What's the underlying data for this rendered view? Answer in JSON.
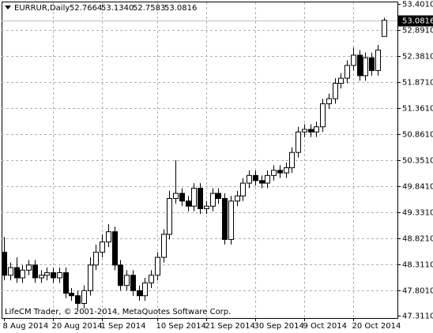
{
  "chart_data": {
    "type": "candlestick",
    "title": "EURRUR,Daily",
    "footer": "LifeCM Trader, © 2001-2014, MetaQuotes Software Corp.",
    "categories": [
      "8 Aug 2014",
      null,
      null,
      null,
      null,
      null,
      null,
      null,
      "20 Aug 2014",
      null,
      null,
      null,
      null,
      null,
      null,
      null,
      "1 Sep 2014",
      null,
      null,
      null,
      null,
      null,
      null,
      null,
      null,
      "10 Sep 2014",
      null,
      null,
      null,
      null,
      null,
      null,
      null,
      "21 Sep 2014",
      null,
      null,
      null,
      null,
      null,
      null,
      null,
      "30 Sep 2014",
      null,
      null,
      null,
      null,
      null,
      null,
      null,
      "9 Oct 2014",
      null,
      null,
      null,
      null,
      null,
      null,
      null,
      "20 Oct 2014",
      null,
      null,
      null,
      null,
      null
    ],
    "open": [
      48.55,
      48.1,
      48.25,
      48.05,
      48.2,
      48.3,
      48.05,
      48.1,
      48.15,
      48.05,
      48.15,
      47.75,
      47.7,
      47.55,
      47.8,
      48.3,
      48.55,
      48.75,
      48.95,
      48.3,
      47.9,
      48.1,
      47.8,
      47.7,
      47.95,
      48.1,
      48.45,
      48.9,
      49.6,
      49.7,
      49.55,
      49.45,
      49.8,
      49.4,
      49.45,
      49.7,
      49.6,
      48.8,
      49.55,
      49.65,
      49.9,
      50.05,
      49.95,
      49.9,
      50.05,
      50.15,
      50.1,
      50.2,
      50.5,
      50.9,
      50.95,
      50.9,
      51.0,
      51.45,
      51.55,
      51.85,
      51.95,
      52.2,
      52.4,
      52.0,
      52.35,
      52.1,
      52.7664
    ],
    "high": [
      48.85,
      48.35,
      48.45,
      48.3,
      48.4,
      48.4,
      48.2,
      48.25,
      48.25,
      48.25,
      48.25,
      47.85,
      47.8,
      47.9,
      48.45,
      48.7,
      48.9,
      49.1,
      49.05,
      48.4,
      48.2,
      48.2,
      47.9,
      48.05,
      48.2,
      48.55,
      49.0,
      49.75,
      50.35,
      49.8,
      49.65,
      49.9,
      49.9,
      49.55,
      49.8,
      49.8,
      49.7,
      49.65,
      49.75,
      50.0,
      50.15,
      50.15,
      50.05,
      50.15,
      50.25,
      50.25,
      50.3,
      50.6,
      51.0,
      51.05,
      51.05,
      51.1,
      51.55,
      51.65,
      51.95,
      52.05,
      52.3,
      52.55,
      52.5,
      52.45,
      52.45,
      52.6,
      53.134
    ],
    "low": [
      48.0,
      48.0,
      47.95,
      47.95,
      48.1,
      47.95,
      47.95,
      48.0,
      47.95,
      47.95,
      47.65,
      47.6,
      47.45,
      47.45,
      47.7,
      48.2,
      48.45,
      48.65,
      48.2,
      47.8,
      47.8,
      47.7,
      47.6,
      47.6,
      47.85,
      48.0,
      48.35,
      48.8,
      49.5,
      49.45,
      49.35,
      49.35,
      49.3,
      49.3,
      49.35,
      49.5,
      48.7,
      48.7,
      49.45,
      49.55,
      49.8,
      49.85,
      49.8,
      49.8,
      49.95,
      50.0,
      50.0,
      50.1,
      50.4,
      50.8,
      50.8,
      50.8,
      50.9,
      51.35,
      51.45,
      51.75,
      51.85,
      52.1,
      51.9,
      51.9,
      52.0,
      52.0,
      52.7583
    ],
    "close": [
      48.1,
      48.25,
      48.05,
      48.2,
      48.3,
      48.05,
      48.1,
      48.15,
      48.05,
      48.15,
      47.75,
      47.7,
      47.55,
      47.8,
      48.3,
      48.55,
      48.75,
      48.95,
      48.3,
      47.9,
      48.1,
      47.8,
      47.7,
      47.95,
      48.1,
      48.45,
      48.9,
      49.6,
      49.7,
      49.55,
      49.45,
      49.8,
      49.4,
      49.45,
      49.7,
      49.6,
      48.8,
      49.55,
      49.65,
      49.9,
      50.05,
      49.95,
      49.9,
      50.05,
      50.15,
      50.1,
      50.2,
      50.5,
      50.9,
      50.95,
      50.9,
      51.0,
      51.45,
      51.55,
      51.85,
      51.95,
      52.2,
      52.4,
      52.0,
      52.35,
      52.1,
      52.5,
      53.0816
    ],
    "value_labels": [
      "52.7664",
      "53.1340",
      "52.7583",
      "53.0816"
    ],
    "ylim": [
      47.311,
      53.401
    ],
    "yticks": [
      {
        "value": 53.401,
        "label": "53.4010"
      },
      {
        "value": 52.891,
        "label": "52.8910"
      },
      {
        "value": 52.381,
        "label": "52.3810"
      },
      {
        "value": 51.871,
        "label": "51.8710"
      },
      {
        "value": 51.361,
        "label": "51.3610"
      },
      {
        "value": 50.861,
        "label": "50.8610"
      },
      {
        "value": 50.351,
        "label": "50.3510"
      },
      {
        "value": 49.841,
        "label": "49.8410"
      },
      {
        "value": 49.331,
        "label": "49.3310"
      },
      {
        "value": 48.821,
        "label": "48.8210"
      },
      {
        "value": 48.311,
        "label": "48.3110"
      },
      {
        "value": 47.801,
        "label": "47.8010"
      },
      {
        "value": 47.311,
        "label": "47.3110"
      }
    ],
    "grid": true,
    "up_color": "#ffffff",
    "down_color": "#000000"
  }
}
